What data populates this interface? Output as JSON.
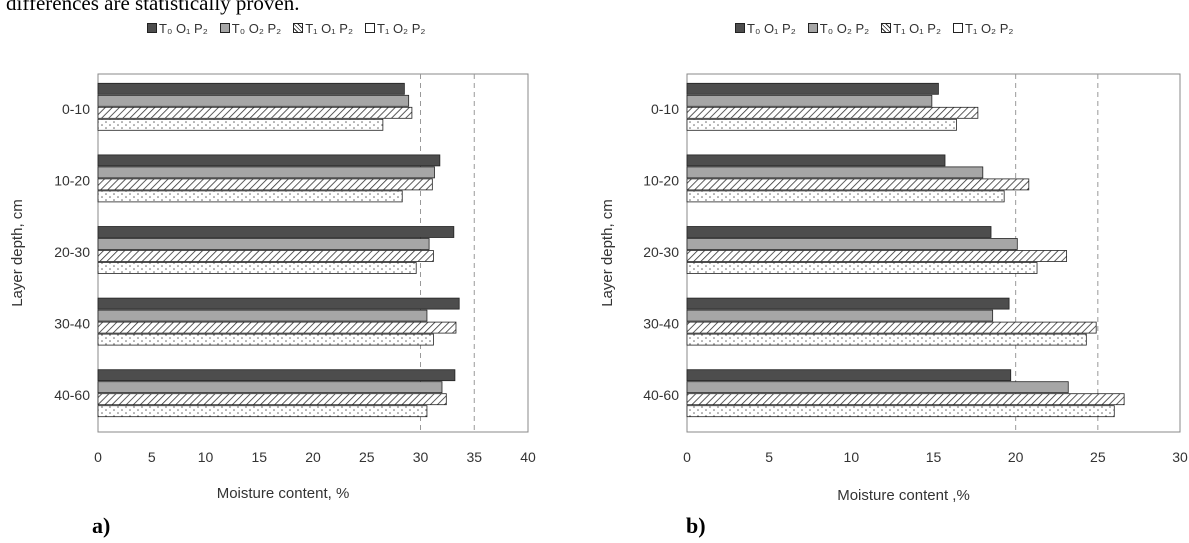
{
  "caption": "differences are statistically proven.",
  "legend": [
    "T₀ O₁ P₂",
    "T₀ O₂ P₂",
    "T₁ O₁ P₂",
    "T₁ O₂ P₂"
  ],
  "panels": {
    "a_label": "a)",
    "b_label": "b)"
  },
  "colors": {
    "s0": "#4d4d4d",
    "s1": "#a6a6a6",
    "s2": "hatched",
    "s3": "dotted-white"
  },
  "chart_data": [
    {
      "type": "bar",
      "orientation": "horizontal",
      "panel": "a)",
      "categories": [
        "0-10",
        "10-20",
        "20-30",
        "30-40",
        "40-60"
      ],
      "series": [
        {
          "name": "T₀ O₁ P₂",
          "values": [
            28.5,
            31.8,
            33.1,
            33.6,
            33.2
          ]
        },
        {
          "name": "T₀ O₂ P₂",
          "values": [
            28.9,
            31.3,
            30.8,
            30.6,
            32.0
          ]
        },
        {
          "name": "T₁ O₁ P₂",
          "values": [
            29.2,
            31.1,
            31.2,
            33.3,
            32.4
          ]
        },
        {
          "name": "T₁ O₂ P₂",
          "values": [
            26.5,
            28.3,
            29.6,
            31.2,
            30.6
          ]
        }
      ],
      "xlabel": "Moisture content, %",
      "ylabel": "Layer depth, cm",
      "xlim": [
        0,
        40
      ],
      "xticks": [
        0,
        5,
        10,
        15,
        20,
        25,
        30,
        35,
        40
      ],
      "dashed_gridlines": [
        30,
        35
      ]
    },
    {
      "type": "bar",
      "orientation": "horizontal",
      "panel": "b)",
      "categories": [
        "0-10",
        "10-20",
        "20-30",
        "30-40",
        "40-60"
      ],
      "series": [
        {
          "name": "T₀ O₁ P₂",
          "values": [
            15.3,
            15.7,
            18.5,
            19.6,
            19.7
          ]
        },
        {
          "name": "T₀ O₂ P₂",
          "values": [
            14.9,
            18.0,
            20.1,
            18.6,
            23.2
          ]
        },
        {
          "name": "T₁ O₁ P₂",
          "values": [
            17.7,
            20.8,
            23.1,
            24.9,
            26.6
          ]
        },
        {
          "name": "T₁ O₂ P₂",
          "values": [
            16.4,
            19.3,
            21.3,
            24.3,
            26.0
          ]
        }
      ],
      "xlabel": "Moisture content ,%",
      "ylabel": "Layer depth, cm",
      "xlim": [
        0,
        30
      ],
      "xticks": [
        0,
        5,
        10,
        15,
        20,
        25,
        30
      ],
      "dashed_gridlines": [
        20,
        25
      ]
    }
  ]
}
